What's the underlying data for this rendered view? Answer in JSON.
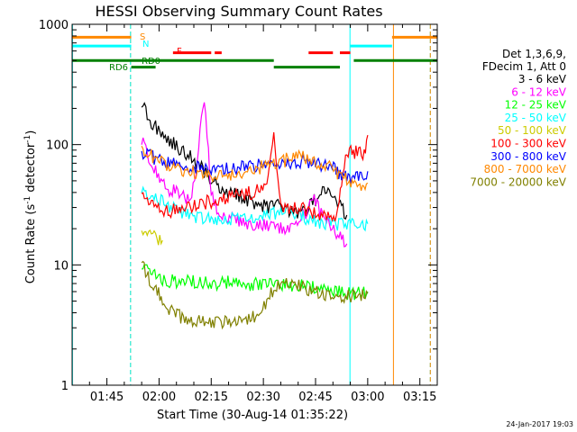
{
  "chart_data": {
    "type": "line",
    "title": "HESSI Observing Summary Count Rates",
    "xlabel": "Start Time (30-Aug-14 01:35:22)",
    "ylabel": "Count Rate (s⁻¹ detector⁻¹)",
    "ylabel_parts": [
      "Count Rate (s",
      "-1",
      " detector",
      "-1",
      ")"
    ],
    "yscale": "log",
    "xlim_minutes": [
      0,
      105
    ],
    "ylim": [
      1,
      1000
    ],
    "x_ticks": [
      {
        "label": "01:45",
        "min": 10
      },
      {
        "label": "02:00",
        "min": 25
      },
      {
        "label": "02:15",
        "min": 40
      },
      {
        "label": "02:30",
        "min": 55
      },
      {
        "label": "02:45",
        "min": 70
      },
      {
        "label": "03:00",
        "min": 85
      },
      {
        "label": "03:15",
        "min": 100
      }
    ],
    "y_ticks": [
      {
        "label": "1",
        "value": 1
      },
      {
        "label": "10",
        "value": 10
      },
      {
        "label": "100",
        "value": 100
      },
      {
        "label": "1000",
        "value": 1000
      }
    ],
    "legend_header": [
      "Det 1,3,6,9,",
      "FDecim 1, Att 0"
    ],
    "legend_placement": "right",
    "series": [
      {
        "name": "3 - 6 keV",
        "color": "#000000",
        "x": [
          20,
          22,
          24,
          26,
          28,
          30,
          34,
          38,
          42,
          46,
          50,
          54,
          56,
          58,
          60,
          62,
          64,
          66,
          68,
          70,
          72,
          74,
          76,
          79
        ],
        "y": [
          230,
          160,
          140,
          120,
          110,
          95,
          80,
          60,
          45,
          40,
          35,
          32,
          30,
          30,
          32,
          28,
          27,
          26,
          30,
          35,
          40,
          45,
          33,
          26
        ]
      },
      {
        "name": "6 - 12 keV",
        "color": "#ff00ff",
        "x": [
          20,
          22,
          24,
          26,
          28,
          30,
          32,
          34,
          36,
          38,
          40,
          42,
          46,
          50,
          54,
          56,
          58,
          60,
          62,
          64,
          66,
          68,
          70,
          72,
          74,
          76,
          79
        ],
        "y": [
          110,
          80,
          60,
          50,
          42,
          40,
          38,
          32,
          75,
          250,
          40,
          28,
          24,
          22,
          22,
          21,
          20,
          20,
          19,
          21,
          24,
          30,
          35,
          25,
          22,
          18,
          15
        ]
      },
      {
        "name": "12 - 25 keV",
        "color": "#00ff00",
        "x": [
          20,
          23,
          26,
          30,
          34,
          38,
          42,
          46,
          50,
          54,
          58,
          62,
          66,
          70,
          74,
          78,
          82,
          85
        ],
        "y": [
          10,
          8.5,
          7.6,
          7.2,
          7.4,
          7,
          7,
          7.2,
          7,
          6.8,
          7,
          6.8,
          6.6,
          6.5,
          6.2,
          6,
          5.8,
          6
        ]
      },
      {
        "name": "25 - 50 keV",
        "color": "#00ffff",
        "x": [
          20,
          24,
          28,
          32,
          36,
          40,
          44,
          48,
          52,
          56,
          58,
          62,
          66,
          70,
          74,
          79,
          82,
          85
        ],
        "y": [
          42,
          36,
          30,
          27,
          25,
          24,
          24,
          25,
          25,
          26,
          27,
          27,
          25,
          23,
          22,
          22,
          22,
          22
        ]
      },
      {
        "name": "50 - 100 keV",
        "color": "#cccc00",
        "x": [
          20,
          22,
          24,
          26
        ],
        "y": [
          20,
          18,
          17,
          16
        ]
      },
      {
        "name": "100 - 300 keV",
        "color": "#ff0000",
        "x": [
          20,
          22,
          24,
          26,
          28,
          32,
          36,
          40,
          44,
          48,
          52,
          56,
          58,
          60,
          64,
          68,
          72,
          76,
          79,
          82,
          84,
          85
        ],
        "y": [
          40,
          34,
          30,
          28,
          28,
          30,
          32,
          34,
          36,
          38,
          40,
          45,
          115,
          30,
          30,
          28,
          26,
          25,
          90,
          85,
          85,
          120
        ]
      },
      {
        "name": "300 - 800 keV",
        "color": "#0000ff",
        "x": [
          20,
          24,
          28,
          32,
          36,
          40,
          44,
          48,
          52,
          56,
          58,
          62,
          66,
          70,
          74,
          79,
          82,
          85
        ],
        "y": [
          88,
          76,
          70,
          66,
          64,
          62,
          62,
          64,
          66,
          68,
          70,
          72,
          72,
          70,
          66,
          54,
          54,
          60
        ]
      },
      {
        "name": "800 - 7000 keV",
        "color": "#ff8800",
        "x": [
          20,
          24,
          28,
          32,
          36,
          40,
          44,
          48,
          52,
          56,
          58,
          62,
          66,
          70,
          74,
          79,
          82,
          85
        ],
        "y": [
          95,
          75,
          64,
          60,
          58,
          56,
          56,
          58,
          62,
          66,
          70,
          75,
          78,
          72,
          66,
          50,
          46,
          48
        ]
      },
      {
        "name": "7000 - 20000 keV",
        "color": "#808000",
        "x": [
          20,
          23,
          26,
          29,
          32,
          35,
          38,
          42,
          46,
          50,
          54,
          56,
          58,
          62,
          66,
          70,
          74,
          79,
          82,
          85
        ],
        "y": [
          10,
          7,
          5,
          4,
          3.6,
          3.4,
          3.3,
          3.3,
          3.4,
          3.6,
          3.8,
          5,
          6.5,
          7,
          6.5,
          6,
          5.5,
          5.5,
          5.5,
          5.8
        ]
      }
    ],
    "attenuator_labels": [
      {
        "text": "S",
        "color": "#ff8800"
      },
      {
        "text": "N",
        "color": "#00ffff"
      },
      {
        "text": "F",
        "color": "#ff0000"
      },
      {
        "text": "RD0",
        "color": "#008000"
      },
      {
        "text": "RD6",
        "color": "#008000"
      }
    ],
    "state_bars": [
      {
        "name": "S",
        "color": "#ff8800",
        "value": 780,
        "segments": [
          [
            0,
            17
          ],
          [
            92,
            105
          ]
        ]
      },
      {
        "name": "N",
        "color": "#00ffff",
        "value": 660,
        "segments": [
          [
            0,
            17
          ],
          [
            80,
            92
          ]
        ]
      },
      {
        "name": "F",
        "color": "#ff0000",
        "value": 580,
        "segments": [
          [
            29,
            40
          ],
          [
            41,
            43
          ],
          [
            68,
            75
          ],
          [
            77,
            80
          ]
        ]
      },
      {
        "name": "RD0",
        "color": "#008000",
        "value": 500,
        "segments": [
          [
            0,
            58
          ],
          [
            81,
            105
          ]
        ]
      },
      {
        "name": "RD6",
        "color": "#008000",
        "value": 440,
        "segments": [
          [
            17,
            24
          ],
          [
            58,
            77
          ]
        ]
      }
    ],
    "markers": [
      {
        "min": 0.1,
        "color": "#00ffff",
        "style": "solid"
      },
      {
        "min": 16.8,
        "color": "#ff8800",
        "style": "dashed"
      },
      {
        "min": 16.8,
        "color": "#00ffff",
        "style": "dashed"
      },
      {
        "min": 79.9,
        "color": "#00ffff",
        "style": "solid"
      },
      {
        "min": 92.4,
        "color": "#ff8800",
        "style": "solid"
      },
      {
        "min": 103,
        "color": "#00ffff",
        "style": "dashed"
      },
      {
        "min": 103,
        "color": "#ff8800",
        "style": "dashed"
      }
    ],
    "timestamp": "24-Jan-2017 19:03"
  }
}
